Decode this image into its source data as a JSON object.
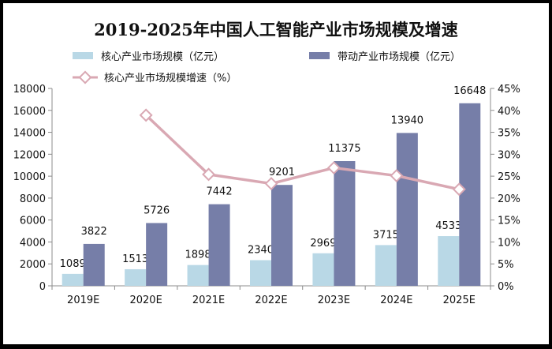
{
  "chart_data": {
    "type": "bar",
    "title": "2019-2025年中国人工智能产业市场规模及增速",
    "categories": [
      "2019E",
      "2020E",
      "2021E",
      "2022E",
      "2023E",
      "2024E",
      "2025E"
    ],
    "series": [
      {
        "name": "核心产业市场规模（亿元）",
        "kind": "bar",
        "axis": "left",
        "color": "#b9d8e6",
        "values": [
          1089,
          1513,
          1898,
          2340,
          2969,
          3715,
          4533
        ]
      },
      {
        "name": "带动产业市场规模（亿元）",
        "kind": "bar",
        "axis": "left",
        "color": "#767ea8",
        "values": [
          3822,
          5726,
          7442,
          9201,
          11375,
          13940,
          16648
        ]
      },
      {
        "name": "核心产业市场规模增速（%）",
        "kind": "line",
        "axis": "right",
        "color": "#d9a8b3",
        "marker_color": "#d9a8b3",
        "values": [
          null,
          38.9,
          25.4,
          23.3,
          26.9,
          25.1,
          22.0
        ]
      }
    ],
    "y_left": {
      "min": 0,
      "max": 18000,
      "step": 2000,
      "ticks": [
        "0",
        "2000",
        "4000",
        "6000",
        "8000",
        "10000",
        "12000",
        "14000",
        "16000",
        "18000"
      ]
    },
    "y_right": {
      "min": 0,
      "max": 45,
      "step": 5,
      "ticks": [
        "0%",
        "5%",
        "10%",
        "15%",
        "20%",
        "25%",
        "30%",
        "35%",
        "40%",
        "45%"
      ]
    },
    "grid": false,
    "legend_position": "top",
    "background": "#ffffff"
  }
}
